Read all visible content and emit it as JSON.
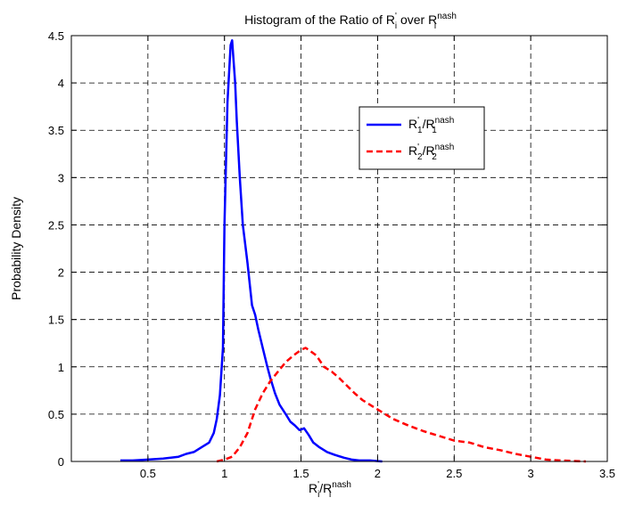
{
  "chart_data": {
    "type": "line",
    "title": {
      "prefix": "Histogram of the Ratio of R",
      "sub1": "i",
      "sup1": "'",
      "mid": " over R",
      "sub2": "i",
      "sup2": "nash"
    },
    "xlabel": {
      "base1": "R",
      "sub1": "i",
      "sup1": "'",
      "slash": "/R",
      "sub2": "i",
      "sup2": "nash"
    },
    "ylabel": "Probability Density",
    "xlim": [
      0,
      3.5
    ],
    "ylim": [
      0,
      4.5
    ],
    "xticks": [
      0.5,
      1,
      1.5,
      2,
      2.5,
      3,
      3.5
    ],
    "xtick_labels": [
      "0.5",
      "1",
      "1.5",
      "2",
      "2.5",
      "3",
      "3.5"
    ],
    "yticks": [
      0,
      0.5,
      1,
      1.5,
      2,
      2.5,
      3,
      3.5,
      4,
      4.5
    ],
    "ytick_labels": [
      "0",
      "0.5",
      "1",
      "1.5",
      "2",
      "2.5",
      "3",
      "3.5",
      "4",
      "4.5"
    ],
    "grid": true,
    "legend_position": "upper-right",
    "series": [
      {
        "legend": {
          "base1": "R",
          "sub1": "1",
          "sup1": "'",
          "slash": "/R",
          "sub2": "1",
          "sup2": "nash"
        },
        "color": "#0000ff",
        "style": "solid",
        "x": [
          0.32,
          0.4,
          0.5,
          0.6,
          0.7,
          0.75,
          0.8,
          0.85,
          0.9,
          0.93,
          0.95,
          0.97,
          0.99,
          1.0,
          1.02,
          1.04,
          1.05,
          1.07,
          1.08,
          1.1,
          1.12,
          1.15,
          1.18,
          1.2,
          1.22,
          1.25,
          1.28,
          1.3,
          1.33,
          1.36,
          1.4,
          1.43,
          1.46,
          1.49,
          1.52,
          1.55,
          1.58,
          1.62,
          1.67,
          1.72,
          1.78,
          1.83,
          1.88,
          1.95,
          2.03
        ],
        "y": [
          0.01,
          0.01,
          0.02,
          0.03,
          0.05,
          0.08,
          0.1,
          0.15,
          0.2,
          0.3,
          0.45,
          0.7,
          1.2,
          2.5,
          3.8,
          4.4,
          4.45,
          4.0,
          3.6,
          3.0,
          2.5,
          2.1,
          1.65,
          1.55,
          1.4,
          1.2,
          1.0,
          0.88,
          0.72,
          0.6,
          0.5,
          0.42,
          0.38,
          0.33,
          0.35,
          0.28,
          0.2,
          0.15,
          0.1,
          0.07,
          0.04,
          0.02,
          0.01,
          0.01,
          0.0
        ]
      },
      {
        "legend": {
          "base1": "R",
          "sub1": "2",
          "sup1": "'",
          "slash": "/R",
          "sub2": "2",
          "sup2": "nash"
        },
        "color": "#ff0000",
        "style": "dashed",
        "x": [
          0.95,
          1.0,
          1.05,
          1.1,
          1.15,
          1.2,
          1.25,
          1.3,
          1.35,
          1.4,
          1.45,
          1.5,
          1.53,
          1.55,
          1.6,
          1.65,
          1.7,
          1.75,
          1.8,
          1.85,
          1.9,
          1.95,
          2.0,
          2.05,
          2.1,
          2.2,
          2.3,
          2.4,
          2.5,
          2.6,
          2.7,
          2.8,
          2.9,
          3.0,
          3.1,
          3.2,
          3.36
        ],
        "y": [
          0.0,
          0.02,
          0.05,
          0.15,
          0.3,
          0.55,
          0.72,
          0.85,
          0.95,
          1.05,
          1.12,
          1.18,
          1.2,
          1.18,
          1.12,
          1.0,
          0.95,
          0.88,
          0.8,
          0.72,
          0.65,
          0.6,
          0.55,
          0.5,
          0.45,
          0.38,
          0.32,
          0.27,
          0.22,
          0.2,
          0.15,
          0.12,
          0.08,
          0.05,
          0.02,
          0.01,
          0.0
        ]
      }
    ]
  }
}
